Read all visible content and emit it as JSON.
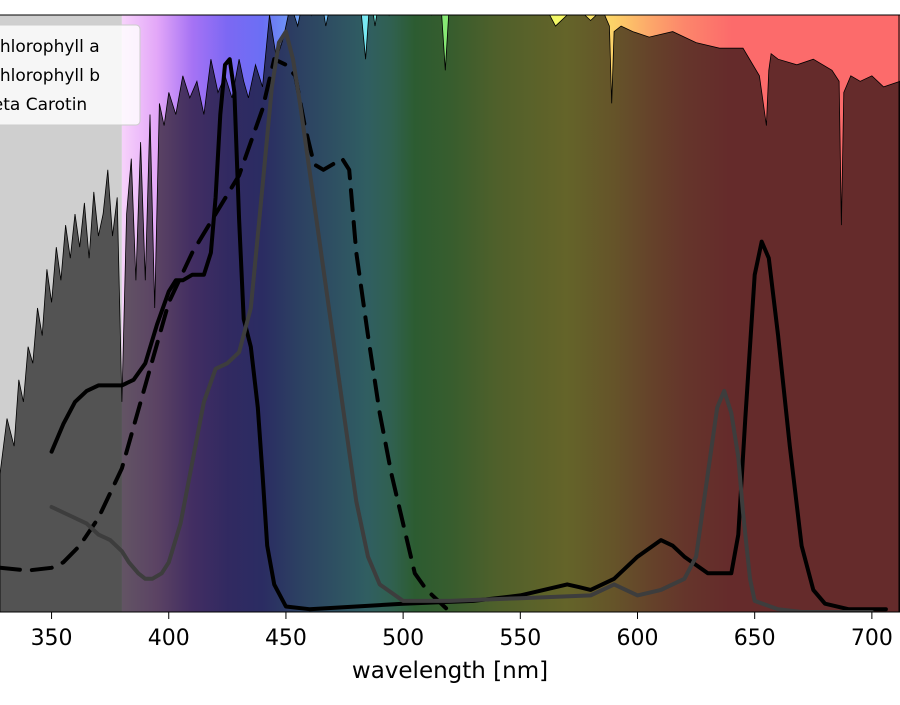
{
  "chart_data": {
    "type": "line",
    "title": "",
    "xlabel": "wavelength [nm]",
    "ylabel": "",
    "xlim": [
      328,
      712
    ],
    "ylim": [
      0,
      1.08
    ],
    "x_ticks": [
      350,
      400,
      450,
      500,
      550,
      600,
      650,
      700
    ],
    "x_tick_labels": [
      "350",
      "400",
      "450",
      "500",
      "550",
      "600",
      "650",
      "700"
    ],
    "legend_position": "top-left",
    "grid": false,
    "uv_region": [
      328,
      380
    ],
    "spectrum_colors": [
      {
        "nm": 380,
        "color": "#f7d2fb"
      },
      {
        "nm": 395,
        "color": "#e3a7f8"
      },
      {
        "nm": 410,
        "color": "#a673f4"
      },
      {
        "nm": 425,
        "color": "#7c68f3"
      },
      {
        "nm": 440,
        "color": "#6b6ff4"
      },
      {
        "nm": 455,
        "color": "#6fa0f5"
      },
      {
        "nm": 470,
        "color": "#74c6f6"
      },
      {
        "nm": 485,
        "color": "#78ecf3"
      },
      {
        "nm": 495,
        "color": "#79f1c8"
      },
      {
        "nm": 505,
        "color": "#6fe77b"
      },
      {
        "nm": 520,
        "color": "#8ae873"
      },
      {
        "nm": 540,
        "color": "#c6f06b"
      },
      {
        "nm": 570,
        "color": "#fbf966"
      },
      {
        "nm": 590,
        "color": "#fcd168"
      },
      {
        "nm": 605,
        "color": "#fca86a"
      },
      {
        "nm": 620,
        "color": "#fc866b"
      },
      {
        "nm": 640,
        "color": "#fc6b6b"
      },
      {
        "nm": 712,
        "color": "#fc6b6b"
      }
    ],
    "solar_spectrum": {
      "x": [
        328,
        331,
        334,
        336,
        338,
        340,
        342,
        344,
        346,
        348,
        350,
        352,
        354,
        356,
        358,
        360,
        362,
        364,
        366,
        368,
        370,
        372,
        374,
        376,
        378,
        380,
        382,
        384,
        386,
        388,
        390,
        392,
        394,
        396,
        398,
        400,
        403,
        406,
        409,
        412,
        415,
        418,
        421,
        424,
        427,
        430,
        432,
        434,
        437,
        440,
        443,
        446,
        449,
        452,
        455,
        458,
        461,
        464,
        467,
        470,
        473,
        476,
        479,
        482,
        484,
        486,
        488,
        491,
        494,
        497,
        500,
        504,
        508,
        512,
        516,
        518,
        520,
        524,
        528,
        532,
        536,
        540,
        545,
        550,
        555,
        560,
        565,
        570,
        575,
        580,
        585,
        588,
        589,
        590,
        593,
        598,
        605,
        615,
        625,
        635,
        645,
        652,
        655,
        656,
        657,
        660,
        668,
        675,
        683,
        686,
        687,
        688,
        691,
        695,
        700,
        705,
        712
      ],
      "y": [
        0.25,
        0.35,
        0.3,
        0.42,
        0.38,
        0.48,
        0.45,
        0.55,
        0.5,
        0.62,
        0.56,
        0.66,
        0.6,
        0.7,
        0.64,
        0.72,
        0.66,
        0.74,
        0.64,
        0.76,
        0.68,
        0.72,
        0.8,
        0.68,
        0.75,
        0.38,
        0.72,
        0.82,
        0.6,
        0.85,
        0.6,
        0.9,
        0.55,
        0.92,
        0.88,
        0.94,
        0.9,
        0.97,
        0.93,
        0.96,
        0.9,
        1.0,
        0.94,
        0.97,
        0.93,
        1.0,
        0.96,
        0.93,
        0.99,
        0.95,
        1.08,
        1.0,
        1.04,
        1.1,
        1.06,
        1.12,
        1.08,
        1.14,
        1.06,
        1.12,
        1.1,
        1.15,
        1.1,
        1.09,
        1.0,
        1.12,
        1.06,
        1.14,
        1.08,
        1.12,
        1.13,
        1.1,
        1.14,
        1.08,
        1.11,
        0.98,
        1.12,
        1.1,
        1.13,
        1.09,
        1.12,
        1.1,
        1.11,
        1.1,
        1.08,
        1.1,
        1.06,
        1.08,
        1.09,
        1.07,
        1.09,
        1.06,
        0.92,
        1.05,
        1.06,
        1.05,
        1.04,
        1.05,
        1.03,
        1.02,
        1.02,
        0.97,
        0.88,
        0.98,
        1.01,
        1.0,
        0.99,
        1.0,
        0.98,
        0.96,
        0.7,
        0.94,
        0.97,
        0.96,
        0.97,
        0.95,
        0.96
      ]
    },
    "series": [
      {
        "name": "Chlorophyll a",
        "color": "#000000",
        "style": "solid",
        "x": [
          350,
          355,
          360,
          365,
          370,
          375,
          380,
          385,
          390,
          395,
          400,
          403,
          406,
          410,
          415,
          418,
          420,
          422,
          424,
          426,
          428,
          430,
          432,
          435,
          438,
          440,
          442,
          445,
          450,
          460,
          480,
          500,
          530,
          550,
          560,
          570,
          575,
          580,
          590,
          600,
          610,
          615,
          620,
          630,
          640,
          643,
          646,
          650,
          653,
          656,
          660,
          665,
          670,
          675,
          680,
          690,
          700,
          706
        ],
        "y": [
          0.29,
          0.34,
          0.38,
          0.4,
          0.41,
          0.41,
          0.41,
          0.42,
          0.45,
          0.52,
          0.58,
          0.6,
          0.6,
          0.61,
          0.61,
          0.65,
          0.75,
          0.9,
          0.99,
          1.0,
          0.94,
          0.71,
          0.53,
          0.48,
          0.37,
          0.25,
          0.12,
          0.05,
          0.01,
          0.005,
          0.01,
          0.015,
          0.02,
          0.03,
          0.04,
          0.05,
          0.045,
          0.04,
          0.06,
          0.1,
          0.13,
          0.12,
          0.1,
          0.07,
          0.07,
          0.14,
          0.35,
          0.61,
          0.67,
          0.64,
          0.5,
          0.3,
          0.12,
          0.04,
          0.015,
          0.005,
          0.005,
          0.005
        ]
      },
      {
        "name": "Chlorophyll b",
        "color": "#000000",
        "style": "dashed",
        "x": [
          328,
          340,
          350,
          355,
          362,
          370,
          380,
          390,
          400,
          410,
          420,
          430,
          440,
          445,
          450,
          454,
          458,
          462,
          466,
          470,
          474,
          477,
          480,
          485,
          490,
          495,
          500,
          505,
          510,
          515,
          520
        ],
        "y": [
          0.08,
          0.075,
          0.08,
          0.09,
          0.12,
          0.17,
          0.26,
          0.41,
          0.56,
          0.65,
          0.72,
          0.79,
          0.91,
          1.0,
          0.99,
          0.97,
          0.88,
          0.81,
          0.8,
          0.81,
          0.82,
          0.8,
          0.65,
          0.5,
          0.36,
          0.25,
          0.16,
          0.07,
          0.04,
          0.02,
          0.0
        ]
      },
      {
        "name": "beta Carotin",
        "color": "#3d3d3d",
        "style": "solid",
        "x": [
          350,
          355,
          360,
          365,
          370,
          375,
          380,
          383,
          387,
          390,
          393,
          397,
          400,
          405,
          410,
          415,
          420,
          425,
          430,
          435,
          440,
          444,
          447,
          450,
          453,
          456,
          460,
          465,
          470,
          475,
          480,
          485,
          490,
          500,
          520,
          550,
          580,
          590,
          600,
          610,
          620,
          625,
          630,
          634,
          637,
          640,
          643,
          645,
          648,
          650,
          660,
          670,
          680,
          690,
          700
        ],
        "y": [
          0.19,
          0.18,
          0.17,
          0.16,
          0.14,
          0.13,
          0.11,
          0.09,
          0.07,
          0.06,
          0.06,
          0.07,
          0.09,
          0.16,
          0.27,
          0.38,
          0.44,
          0.45,
          0.47,
          0.55,
          0.77,
          0.95,
          1.03,
          1.05,
          1.0,
          0.92,
          0.8,
          0.65,
          0.5,
          0.35,
          0.2,
          0.1,
          0.05,
          0.02,
          0.02,
          0.025,
          0.03,
          0.05,
          0.03,
          0.04,
          0.06,
          0.1,
          0.25,
          0.37,
          0.4,
          0.36,
          0.28,
          0.18,
          0.06,
          0.02,
          0.005,
          0.0,
          0.0,
          0.0,
          0.0
        ]
      }
    ]
  }
}
